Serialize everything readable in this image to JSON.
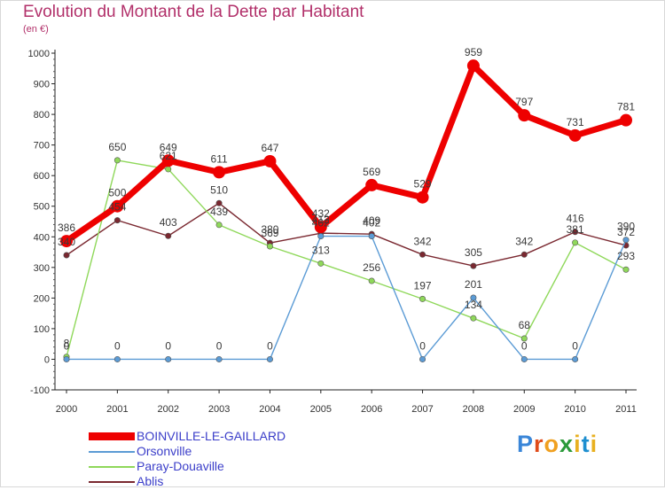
{
  "header": {
    "title": "Evolution du Montant de la Dette par Habitant",
    "subtitle": "(en €)"
  },
  "logo": {
    "text": "Proxiti"
  },
  "chart_data": {
    "type": "line",
    "title": "Evolution du Montant de la Dette par Habitant",
    "subtitle": "(en €)",
    "xlabel": "",
    "ylabel": "",
    "x": [
      "2000",
      "2001",
      "2002",
      "2003",
      "2004",
      "2005",
      "2006",
      "2007",
      "2008",
      "2009",
      "2010",
      "2011"
    ],
    "ylim": [
      -100,
      1000
    ],
    "yticks": [
      -100,
      0,
      100,
      200,
      300,
      400,
      500,
      600,
      700,
      800,
      900,
      1000
    ],
    "grid": false,
    "legend": "bottom-left",
    "series": [
      {
        "name": "BOINVILLE-LE-GAILLARD",
        "color": "#ee0000",
        "values": [
          386,
          500,
          649,
          611,
          647,
          432,
          569,
          529,
          959,
          797,
          731,
          781
        ]
      },
      {
        "name": "Orsonville",
        "color": "#5b9bd5",
        "values": [
          0,
          0,
          0,
          0,
          0,
          402,
          402,
          0,
          201,
          0,
          0,
          390
        ]
      },
      {
        "name": "Paray-Douaville",
        "color": "#8fd85a",
        "values": [
          8,
          650,
          621,
          439,
          369,
          313,
          256,
          197,
          134,
          68,
          381,
          293
        ]
      },
      {
        "name": "Ablis",
        "color": "#7a2830",
        "values": [
          340,
          454,
          403,
          510,
          380,
          412,
          409,
          342,
          305,
          342,
          416,
          372
        ]
      }
    ]
  }
}
